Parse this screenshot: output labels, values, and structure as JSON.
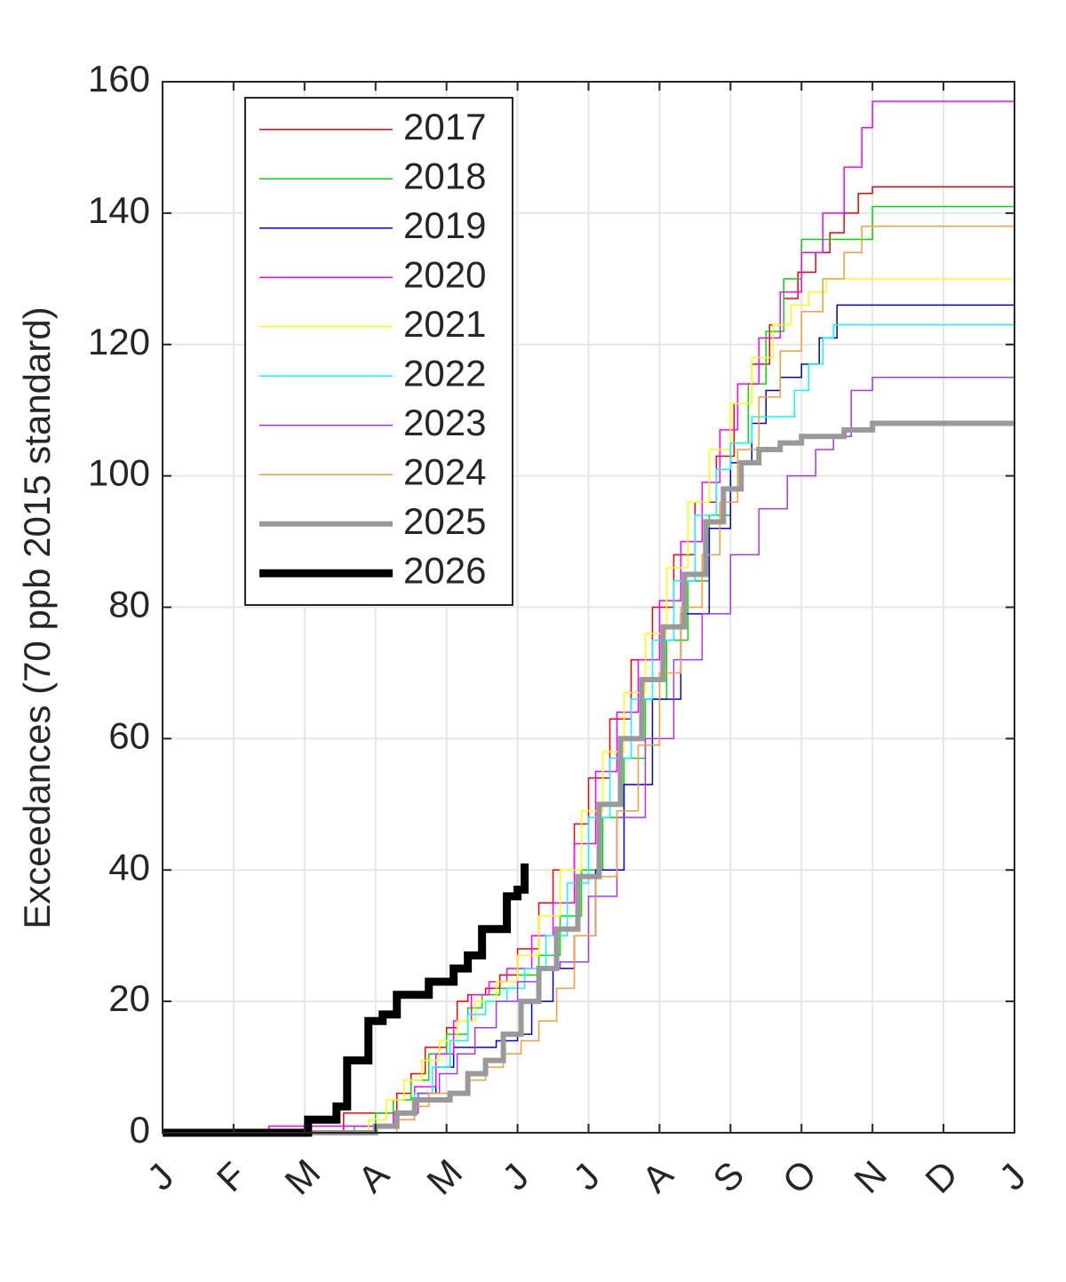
{
  "chart_data": {
    "type": "line",
    "title": "",
    "xlabel": "",
    "ylabel": "Exceedances (70 ppb 2015 standard)",
    "x_unit": "month",
    "xlim": [
      0,
      12
    ],
    "ylim": [
      0,
      160
    ],
    "x_ticks": [
      {
        "value": 0,
        "label": "J"
      },
      {
        "value": 1,
        "label": "F"
      },
      {
        "value": 2,
        "label": "M"
      },
      {
        "value": 3,
        "label": "A"
      },
      {
        "value": 4,
        "label": "M"
      },
      {
        "value": 5,
        "label": "J"
      },
      {
        "value": 6,
        "label": "J"
      },
      {
        "value": 7,
        "label": "A"
      },
      {
        "value": 8,
        "label": "S"
      },
      {
        "value": 9,
        "label": "O"
      },
      {
        "value": 10,
        "label": "N"
      },
      {
        "value": 11,
        "label": "D"
      },
      {
        "value": 12,
        "label": "J"
      }
    ],
    "y_ticks": [
      0,
      20,
      40,
      60,
      80,
      100,
      120,
      140,
      160
    ],
    "grid": true,
    "legend_position": "top-left",
    "series": [
      {
        "name": "2017",
        "color": "#ff0000",
        "width": 1.5,
        "x": [
          0,
          1.5,
          2.55,
          3.0,
          3.3,
          3.5,
          3.7,
          4.0,
          4.15,
          4.3,
          4.55,
          4.75,
          5.0,
          5.3,
          5.5,
          5.8,
          6.0,
          6.3,
          6.6,
          6.9,
          7.2,
          7.5,
          7.8,
          8.05,
          8.3,
          8.55,
          8.75,
          8.95,
          9.2,
          9.4,
          9.6,
          9.8,
          10.0,
          10.5,
          11.0,
          12.0
        ],
        "y": [
          0,
          0,
          3,
          3,
          6,
          9,
          13,
          16,
          20,
          21,
          22,
          24,
          28,
          35,
          40,
          47,
          54,
          63,
          72,
          80,
          88,
          96,
          103,
          111,
          117,
          123,
          127,
          131,
          134,
          137,
          140,
          143,
          144,
          144,
          144,
          144
        ]
      },
      {
        "name": "2018",
        "color": "#00dd00",
        "width": 1.5,
        "x": [
          0,
          1.6,
          2.7,
          3.0,
          3.25,
          3.5,
          3.75,
          4.0,
          4.3,
          4.5,
          4.75,
          5.0,
          5.3,
          5.6,
          5.9,
          6.2,
          6.5,
          6.8,
          7.1,
          7.4,
          7.7,
          8.0,
          8.25,
          8.5,
          8.75,
          9.0,
          9.3,
          9.5,
          9.8,
          10.0,
          10.5,
          11.0,
          12.0
        ],
        "y": [
          0,
          0,
          1,
          3,
          5,
          8,
          12,
          15,
          19,
          21,
          22,
          24,
          27,
          33,
          40,
          48,
          57,
          66,
          75,
          84,
          94,
          105,
          114,
          122,
          130,
          136,
          136,
          136,
          136,
          141,
          141,
          141,
          141
        ]
      },
      {
        "name": "2019",
        "color": "#0000dd",
        "width": 1.5,
        "x": [
          0,
          2.0,
          3.0,
          3.3,
          3.6,
          3.85,
          4.1,
          4.4,
          4.7,
          5.0,
          5.2,
          5.5,
          5.8,
          6.1,
          6.5,
          6.9,
          7.3,
          7.7,
          8.0,
          8.3,
          8.5,
          8.7,
          9.0,
          9.25,
          9.5,
          10.0,
          11.0,
          12.0
        ],
        "y": [
          0,
          0,
          1,
          3,
          6,
          10,
          13,
          13,
          14,
          15,
          20,
          25,
          30,
          40,
          53,
          66,
          79,
          92,
          102,
          108,
          113,
          115,
          117,
          121,
          126,
          126,
          126,
          126
        ]
      },
      {
        "name": "2020",
        "color": "#ff00ff",
        "width": 1.5,
        "x": [
          0,
          1.5,
          2.5,
          3.0,
          3.25,
          3.55,
          3.85,
          4.1,
          4.35,
          4.6,
          4.85,
          5.2,
          5.5,
          5.8,
          6.1,
          6.4,
          6.7,
          7.0,
          7.3,
          7.6,
          7.85,
          8.1,
          8.4,
          8.7,
          9.0,
          9.3,
          9.6,
          9.85,
          10.0,
          10.5,
          11.0,
          12.0
        ],
        "y": [
          0,
          1,
          1,
          1,
          3,
          7,
          12,
          17,
          21,
          23,
          25,
          30,
          35,
          44,
          55,
          64,
          72,
          81,
          90,
          99,
          107,
          114,
          121,
          128,
          134,
          140,
          147,
          153,
          157,
          157,
          157,
          157
        ]
      },
      {
        "name": "2021",
        "color": "#ffff00",
        "width": 1.5,
        "x": [
          0,
          1.8,
          2.9,
          3.15,
          3.4,
          3.65,
          3.9,
          4.15,
          4.4,
          4.7,
          5.0,
          5.3,
          5.6,
          5.9,
          6.2,
          6.5,
          6.8,
          7.1,
          7.4,
          7.7,
          8.0,
          8.3,
          8.6,
          8.85,
          9.1,
          9.35,
          10.0,
          11.0,
          12.0
        ],
        "y": [
          0,
          0,
          2,
          5,
          8,
          11,
          14,
          17,
          20,
          23,
          27,
          33,
          40,
          49,
          58,
          67,
          76,
          86,
          96,
          104,
          111,
          118,
          123,
          126,
          128,
          130,
          130,
          130,
          130
        ]
      },
      {
        "name": "2022",
        "color": "#00ffff",
        "width": 1.5,
        "x": [
          0,
          2.0,
          3.0,
          3.3,
          3.55,
          3.8,
          4.05,
          4.3,
          4.55,
          4.85,
          5.1,
          5.4,
          5.7,
          6.0,
          6.3,
          6.6,
          6.9,
          7.2,
          7.5,
          7.8,
          8.0,
          8.3,
          8.6,
          8.9,
          9.1,
          9.3,
          9.45,
          10.0,
          11.0,
          12.0
        ],
        "y": [
          0,
          0,
          1,
          3,
          6,
          10,
          14,
          18,
          20,
          22,
          25,
          30,
          38,
          48,
          57,
          66,
          75,
          84,
          94,
          101,
          105,
          109,
          109,
          113,
          117,
          121,
          123,
          123,
          123,
          123
        ]
      },
      {
        "name": "2023",
        "color": "#aa33ff",
        "width": 1.5,
        "x": [
          0,
          2.2,
          3.0,
          3.3,
          3.6,
          3.9,
          4.15,
          4.4,
          4.7,
          5.0,
          5.3,
          5.6,
          6.0,
          6.4,
          6.8,
          7.2,
          7.6,
          8.0,
          8.4,
          8.8,
          9.2,
          9.45,
          9.7,
          10.0,
          10.5,
          11.0,
          12.0
        ],
        "y": [
          0,
          0,
          1,
          3,
          6,
          9,
          12,
          16,
          20,
          23,
          25,
          26,
          36,
          48,
          60,
          72,
          79,
          88,
          95,
          100,
          104,
          106,
          113,
          115,
          115,
          115,
          115
        ]
      },
      {
        "name": "2024",
        "color": "#ff9933",
        "width": 1.5,
        "x": [
          0,
          2.0,
          3.0,
          3.3,
          3.55,
          3.75,
          4.0,
          4.3,
          4.55,
          4.8,
          5.05,
          5.3,
          5.55,
          5.8,
          6.1,
          6.4,
          6.7,
          7.0,
          7.3,
          7.6,
          7.85,
          8.1,
          8.4,
          8.7,
          9.0,
          9.3,
          9.6,
          9.85,
          10.0,
          11.0,
          12.0
        ],
        "y": [
          0,
          0,
          0,
          2,
          4,
          6,
          6,
          8,
          10,
          12,
          14,
          17,
          22,
          30,
          39,
          49,
          59,
          70,
          80,
          88,
          96,
          104,
          112,
          119,
          125,
          130,
          134,
          138,
          138,
          138,
          138
        ]
      },
      {
        "name": "2025",
        "color": "#999999",
        "width": 6,
        "x": [
          0,
          2.0,
          2.6,
          3.0,
          3.3,
          3.55,
          3.8,
          4.05,
          4.3,
          4.55,
          4.8,
          5.05,
          5.3,
          5.55,
          5.85,
          6.15,
          6.45,
          6.75,
          7.05,
          7.35,
          7.65,
          7.9,
          8.15,
          8.4,
          8.7,
          9.0,
          9.3,
          9.6,
          9.9,
          10.0,
          11.0,
          12.0
        ],
        "y": [
          0,
          0,
          0,
          1,
          3,
          5,
          5,
          6,
          9,
          11,
          15,
          20,
          25,
          31,
          39,
          50,
          60,
          69,
          77,
          85,
          93,
          98,
          102,
          104,
          105,
          106,
          106,
          107,
          107,
          108,
          108,
          108
        ]
      },
      {
        "name": "2026",
        "color": "#000000",
        "width": 9,
        "x": [
          0,
          1.9,
          2.05,
          2.3,
          2.45,
          2.6,
          2.9,
          3.1,
          3.3,
          3.55,
          3.75,
          3.95,
          4.1,
          4.3,
          4.5,
          4.7,
          4.85,
          5.0,
          5.1
        ],
        "y": [
          0,
          0,
          2,
          2,
          4,
          11,
          17,
          18,
          21,
          21,
          23,
          23,
          25,
          27,
          31,
          31,
          36,
          37,
          41
        ]
      }
    ]
  }
}
